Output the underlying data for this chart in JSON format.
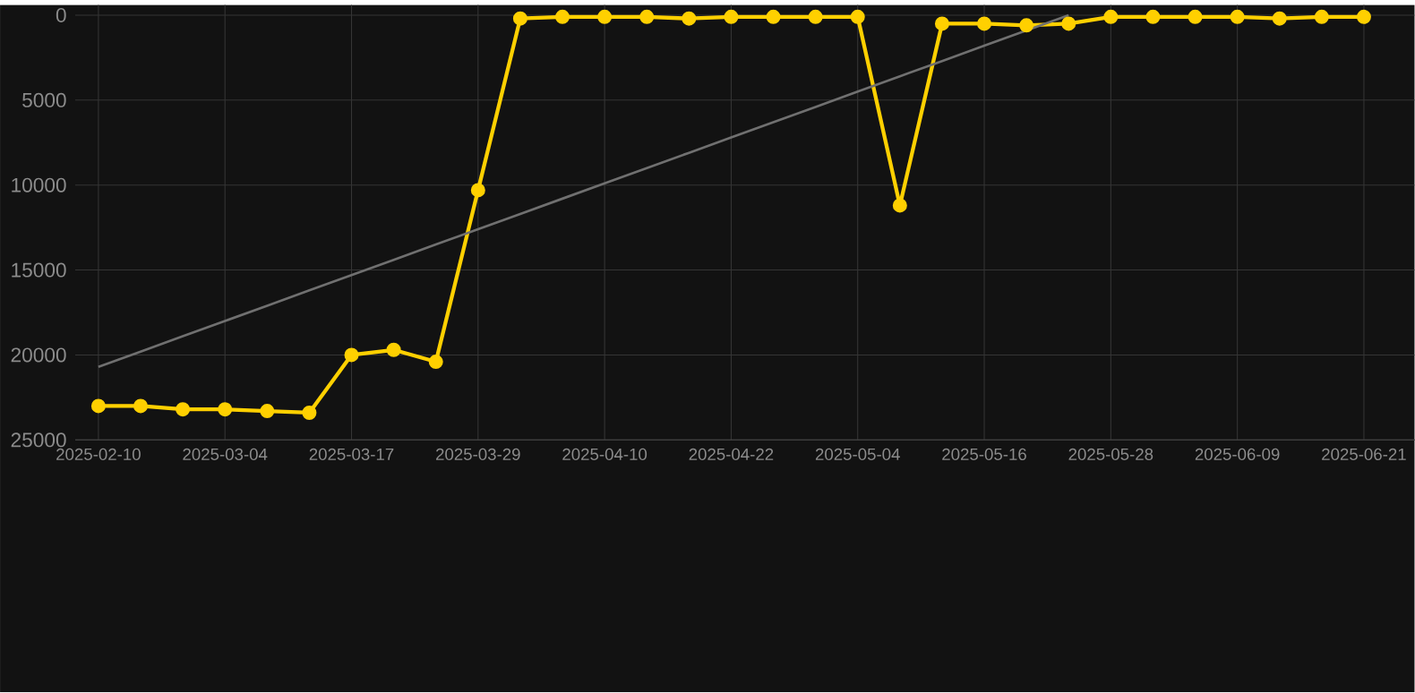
{
  "chart_data": {
    "type": "line",
    "categories": [
      "2025-02-10",
      null,
      null,
      "2025-03-04",
      null,
      null,
      "2025-03-17",
      null,
      null,
      "2025-03-29",
      null,
      null,
      "2025-04-10",
      null,
      null,
      "2025-04-22",
      null,
      null,
      "2025-05-04",
      null,
      null,
      "2025-05-16",
      null,
      null,
      "2025-05-28",
      null,
      null,
      "2025-06-09",
      null,
      null,
      "2025-06-21"
    ],
    "series": [
      {
        "color": "#ffd000",
        "marker": "circle",
        "values": [
          23000,
          23000,
          23200,
          23200,
          23300,
          23400,
          20000,
          19700,
          20400,
          10300,
          200,
          100,
          100,
          100,
          200,
          100,
          100,
          100,
          100,
          11200,
          500,
          500,
          600,
          500,
          100,
          100,
          100,
          100,
          200,
          100,
          100
        ]
      },
      {
        "color": "#707070",
        "marker": "none",
        "values": [
          20700,
          19800,
          18900,
          18000,
          17100,
          16200,
          15300,
          14400,
          13500,
          12600,
          11700,
          10800,
          9900,
          9000,
          8100,
          7200,
          6300,
          5400,
          4500,
          3600,
          2700,
          1800,
          900,
          0,
          null,
          null,
          null,
          null,
          null,
          null,
          null
        ]
      }
    ],
    "ylim": [
      25000,
      -600
    ],
    "yticks": [
      0,
      5000,
      10000,
      15000,
      20000,
      25000
    ],
    "grid": true,
    "line_style": "solid"
  }
}
